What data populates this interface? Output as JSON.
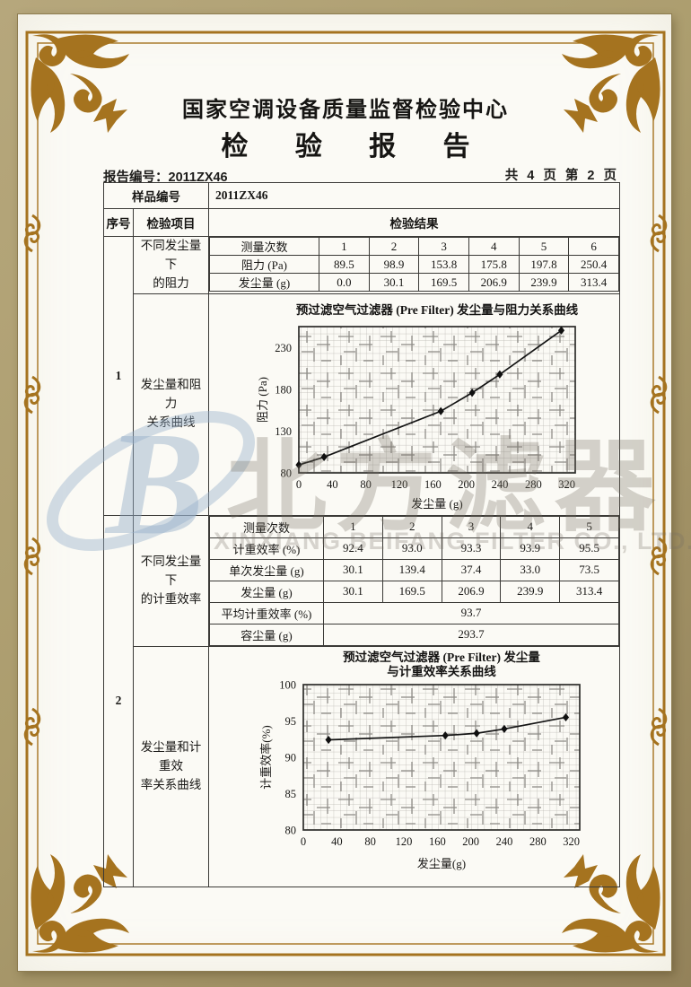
{
  "header": {
    "org": "国家空调设备质量监督检验中心",
    "title": "检 验 报 告",
    "report_no": "报告编号：2011ZX46",
    "pages": "共 4 页 第 2 页"
  },
  "info": {
    "sample_no_label": "样品编号",
    "sample_no": "2011ZX46",
    "col_serial": "序号",
    "col_item": "检验项目",
    "col_result": "检验结果"
  },
  "section1": {
    "serial": "1",
    "item_table_line1": "不同发尘量下",
    "item_table_line2": "的阻力",
    "item_chart_line1": "发尘量和阻力",
    "item_chart_line2": "关系曲线",
    "table1": {
      "rows": [
        {
          "label": "测量次数",
          "values": [
            "1",
            "2",
            "3",
            "4",
            "5",
            "6"
          ]
        },
        {
          "label": "阻力 (Pa)",
          "values": [
            "89.5",
            "98.9",
            "153.8",
            "175.8",
            "197.8",
            "250.4"
          ]
        },
        {
          "label": "发尘量 (g)",
          "values": [
            "0.0",
            "30.1",
            "169.5",
            "206.9",
            "239.9",
            "313.4"
          ]
        }
      ]
    }
  },
  "section2": {
    "serial": "2",
    "item_table_line1": "不同发尘量下",
    "item_table_line2": "的计重效率",
    "item_chart_line1": "发尘量和计重效",
    "item_chart_line2": "率关系曲线",
    "table2": {
      "rows": [
        {
          "label": "测量次数",
          "values": [
            "1",
            "2",
            "3",
            "4",
            "5"
          ]
        },
        {
          "label": "计重效率 (%)",
          "values": [
            "92.4",
            "93.0",
            "93.3",
            "93.9",
            "95.5"
          ]
        },
        {
          "label": "单次发尘量 (g)",
          "values": [
            "30.1",
            "139.4",
            "37.4",
            "33.0",
            "73.5"
          ]
        },
        {
          "label": "发尘量 (g)",
          "values": [
            "30.1",
            "169.5",
            "206.9",
            "239.9",
            "313.4"
          ]
        }
      ],
      "avg": {
        "label": "平均计重效率 (%)",
        "value": "93.7"
      },
      "capacity": {
        "label": "容尘量 (g)",
        "value": "293.7"
      }
    }
  },
  "chart_data": [
    {
      "type": "line",
      "title": "预过滤空气过滤器 (Pre Filter) 发尘量与阻力关系曲线",
      "xlabel": "发尘量 (g)",
      "ylabel": "阻力 (Pa)",
      "x": [
        0,
        30.1,
        169.5,
        206.9,
        239.9,
        313.4
      ],
      "y": [
        89.5,
        98.9,
        153.8,
        175.8,
        197.8,
        250.4
      ],
      "xlim": [
        0,
        330
      ],
      "ylim": [
        80,
        255
      ],
      "xticks": [
        0,
        40,
        80,
        120,
        160,
        200,
        240,
        280,
        320
      ],
      "yticks": [
        80,
        130,
        180,
        230
      ],
      "grid": "on",
      "legend": "none",
      "marker": "diamond"
    },
    {
      "type": "line",
      "title": "预过滤空气过滤器 (Pre Filter) 发尘量",
      "title2": "与计重效率关系曲线",
      "xlabel": "发尘量(g)",
      "ylabel": "计重效率(%)",
      "x": [
        30.1,
        169.5,
        206.9,
        239.9,
        313.4
      ],
      "y": [
        92.4,
        93.0,
        93.3,
        93.9,
        95.5
      ],
      "xlim": [
        0,
        330
      ],
      "ylim": [
        80,
        100
      ],
      "xticks": [
        0,
        40,
        80,
        120,
        160,
        200,
        240,
        280,
        320
      ],
      "yticks": [
        80,
        85,
        90,
        95,
        100
      ],
      "grid": "on",
      "legend": "none",
      "marker": "diamond"
    }
  ],
  "watermark": {
    "logo_letter": "B",
    "text_cn": "北方滤器",
    "text_en": "XINXIANG BEIFANG FILTER CO., LTD."
  },
  "colors": {
    "frame_gold": "#a5731f",
    "border_tan": "#ac9d6e",
    "table_line": "#3b3a37",
    "watermark_blue": "#9db8cc",
    "watermark_gray": "#767064",
    "paper": "#fbfaf5"
  }
}
